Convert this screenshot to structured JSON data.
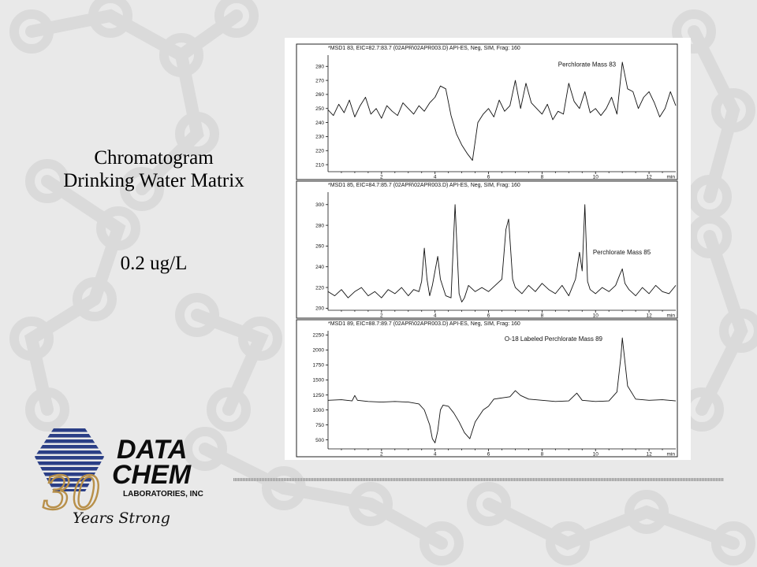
{
  "slide": {
    "caption_title": "Chromatogram Drinking Water Matrix",
    "caption_conc": "0.2 ug/L",
    "background_color": "#e9e9e9",
    "motif_color": "#dadada"
  },
  "logo": {
    "line1": "DATA",
    "line2": "CHEM",
    "line3": "LABORATORIES, INC",
    "anniversary_number": "30",
    "script_text": "Years Strong",
    "globe_color": "#2b3f86",
    "accent_color": "#b8904a"
  },
  "chart_data": [
    {
      "type": "line",
      "header": "*MSD1 83, EIC=82.7:83.7 (02APR\\02APR003.D)   API-ES, Neg, SIM, Frag: 160",
      "trace_label": "Perchlorate Mass 83",
      "x_unit": "min",
      "xlim": [
        0,
        13
      ],
      "ylim": [
        205,
        288
      ],
      "x_ticks": [
        2,
        4,
        6,
        8,
        10,
        12
      ],
      "y_ticks": [
        210,
        220,
        230,
        240,
        250,
        260,
        270,
        280
      ],
      "series": [
        {
          "x": [
            0.0,
            0.2,
            0.4,
            0.6,
            0.8,
            1.0,
            1.2,
            1.4,
            1.6,
            1.8,
            2.0,
            2.2,
            2.4,
            2.6,
            2.8,
            3.0,
            3.2,
            3.4,
            3.6,
            3.8,
            4.0,
            4.2,
            4.4,
            4.6,
            4.8,
            5.0,
            5.2,
            5.4,
            5.6,
            5.8,
            6.0,
            6.2,
            6.4,
            6.6,
            6.8,
            7.0,
            7.2,
            7.4,
            7.6,
            7.8,
            8.0,
            8.2,
            8.4,
            8.6,
            8.8,
            9.0,
            9.2,
            9.4,
            9.6,
            9.8,
            10.0,
            10.2,
            10.4,
            10.6,
            10.8,
            11.0,
            11.2,
            11.4,
            11.6,
            11.8,
            12.0,
            12.2,
            12.4,
            12.6,
            12.8,
            13.0
          ],
          "y": [
            249,
            245,
            253,
            247,
            256,
            244,
            252,
            258,
            246,
            250,
            243,
            252,
            248,
            245,
            254,
            250,
            246,
            252,
            248,
            254,
            258,
            266,
            264,
            245,
            232,
            224,
            218,
            213,
            240,
            246,
            250,
            244,
            256,
            248,
            252,
            270,
            250,
            268,
            254,
            250,
            246,
            253,
            242,
            248,
            246,
            268,
            255,
            250,
            262,
            247,
            250,
            245,
            250,
            258,
            246,
            283,
            264,
            262,
            250,
            258,
            262,
            254,
            244,
            250,
            262,
            252
          ]
        }
      ]
    },
    {
      "type": "line",
      "header": "*MSD1 85, EIC=84.7:85.7 (02APR\\02APR003.D)   API-ES, Neg, SIM, Frag: 160",
      "trace_label": "Perchlorate Mass 85",
      "x_unit": "min",
      "xlim": [
        0,
        13
      ],
      "ylim": [
        198,
        312
      ],
      "x_ticks": [
        2,
        4,
        6,
        8,
        10,
        12
      ],
      "y_ticks": [
        200,
        220,
        240,
        260,
        280,
        300
      ],
      "series": [
        {
          "x": [
            0.0,
            0.25,
            0.5,
            0.75,
            1.0,
            1.25,
            1.5,
            1.75,
            2.0,
            2.25,
            2.5,
            2.75,
            3.0,
            3.2,
            3.4,
            3.5,
            3.6,
            3.7,
            3.8,
            3.9,
            4.0,
            4.1,
            4.2,
            4.4,
            4.6,
            4.75,
            4.9,
            5.0,
            5.1,
            5.25,
            5.5,
            5.75,
            6.0,
            6.25,
            6.5,
            6.65,
            6.75,
            6.9,
            7.0,
            7.25,
            7.5,
            7.75,
            8.0,
            8.25,
            8.5,
            8.75,
            9.0,
            9.25,
            9.4,
            9.5,
            9.6,
            9.7,
            9.8,
            10.0,
            10.25,
            10.5,
            10.75,
            10.9,
            11.0,
            11.1,
            11.25,
            11.5,
            11.75,
            12.0,
            12.25,
            12.5,
            12.75,
            13.0
          ],
          "y": [
            216,
            212,
            218,
            210,
            216,
            220,
            212,
            216,
            210,
            218,
            214,
            220,
            212,
            218,
            216,
            226,
            258,
            228,
            212,
            222,
            236,
            250,
            228,
            212,
            210,
            300,
            214,
            206,
            210,
            222,
            216,
            220,
            216,
            222,
            228,
            276,
            286,
            228,
            220,
            214,
            222,
            216,
            224,
            218,
            214,
            222,
            212,
            228,
            254,
            236,
            300,
            226,
            218,
            214,
            220,
            216,
            222,
            232,
            238,
            224,
            218,
            212,
            220,
            214,
            222,
            216,
            214,
            222
          ]
        }
      ]
    },
    {
      "type": "line",
      "header": "*MSD1 89, EIC=88.7:89.7 (02APR\\02APR003.D)   API-ES, Neg, SIM, Frag: 160",
      "trace_label": "O-18 Labeled Perchlorate Mass 89",
      "x_unit": "min",
      "xlim": [
        0,
        13
      ],
      "ylim": [
        350,
        2320
      ],
      "x_ticks": [
        2,
        4,
        6,
        8,
        10,
        12
      ],
      "y_ticks": [
        500,
        750,
        1000,
        1250,
        1500,
        1750,
        2000,
        2250
      ],
      "series": [
        {
          "x": [
            0.0,
            0.5,
            0.9,
            1.0,
            1.1,
            1.5,
            2.0,
            2.5,
            3.0,
            3.4,
            3.6,
            3.8,
            3.9,
            4.0,
            4.1,
            4.2,
            4.3,
            4.5,
            4.7,
            4.9,
            5.1,
            5.3,
            5.5,
            5.8,
            6.0,
            6.2,
            6.5,
            6.8,
            7.0,
            7.2,
            7.5,
            8.0,
            8.5,
            9.0,
            9.3,
            9.5,
            10.0,
            10.5,
            10.8,
            10.95,
            11.0,
            11.05,
            11.2,
            11.5,
            12.0,
            12.5,
            13.0
          ],
          "y": [
            1160,
            1170,
            1150,
            1240,
            1160,
            1140,
            1130,
            1140,
            1130,
            1100,
            1000,
            750,
            520,
            450,
            650,
            1000,
            1080,
            1060,
            950,
            800,
            620,
            520,
            800,
            1000,
            1060,
            1180,
            1200,
            1220,
            1320,
            1240,
            1180,
            1160,
            1140,
            1150,
            1280,
            1160,
            1140,
            1150,
            1300,
            1900,
            2200,
            2000,
            1400,
            1180,
            1160,
            1170,
            1150
          ]
        }
      ]
    }
  ]
}
